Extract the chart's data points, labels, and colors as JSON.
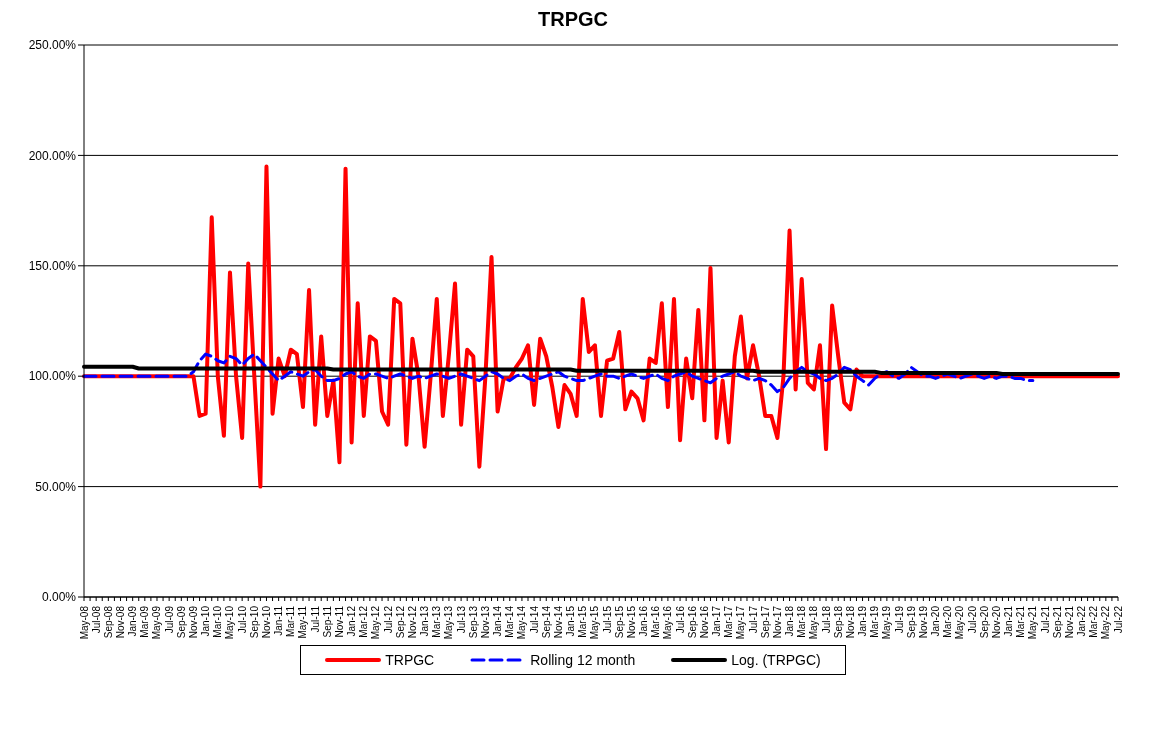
{
  "chart_data": {
    "type": "line",
    "title": "TRPGC",
    "categories": [
      "May-08",
      null,
      "Jul-08",
      null,
      "Sep-08",
      null,
      "Nov-08",
      null,
      "Jan-09",
      null,
      "Mar-09",
      null,
      "May-09",
      null,
      "Jul-09",
      null,
      "Sep-09",
      null,
      "Nov-09",
      null,
      "Jan-10",
      null,
      "Mar-10",
      null,
      "May-10",
      null,
      "Jul-10",
      null,
      "Sep-10",
      null,
      "Nov-10",
      null,
      "Jan-11",
      null,
      "Mar-11",
      null,
      "May-11",
      null,
      "Jul-11",
      null,
      "Sep-11",
      null,
      "Nov-11",
      null,
      "Jan-12",
      null,
      "Mar-12",
      null,
      "May-12",
      null,
      "Jul-12",
      null,
      "Sep-12",
      null,
      "Nov-12",
      null,
      "Jan-13",
      null,
      "Mar-13",
      null,
      "May-13",
      null,
      "Jul-13",
      null,
      "Sep-13",
      null,
      "Nov-13",
      null,
      "Jan-14",
      null,
      "Mar-14",
      null,
      "May-14",
      null,
      "Jul-14",
      null,
      "Sep-14",
      null,
      "Nov-14",
      null,
      "Jan-15",
      null,
      "Mar-15",
      null,
      "May-15",
      null,
      "Jul-15",
      null,
      "Sep-15",
      null,
      "Nov-15",
      null,
      "Jan-16",
      null,
      "Mar-16",
      null,
      "May-16",
      null,
      "Jul-16",
      null,
      "Sep-16",
      null,
      "Nov-16",
      null,
      "Jan-17",
      null,
      "Mar-17",
      null,
      "May-17",
      null,
      "Jul-17",
      null,
      "Sep-17",
      null,
      "Nov-17",
      null,
      "Jan-18",
      null,
      "Mar-18",
      null,
      "May-18",
      null,
      "Jul-18",
      null,
      "Sep-18",
      null,
      "Nov-18",
      null,
      "Jan-19",
      null,
      "Mar-19",
      null,
      "May-19",
      null,
      "Jul-19",
      null,
      "Sep-19",
      null,
      "Nov-19",
      null,
      "Jan-20",
      null,
      "Mar-20",
      null,
      "May-20",
      null,
      "Jul-20",
      null,
      "Sep-20",
      null,
      "Nov-20",
      null,
      "Jan-21",
      null,
      "Mar-21",
      null,
      "May-21",
      null,
      "Jul-21",
      null,
      "Sep-21",
      null,
      "Nov-21",
      null,
      "Jan-22",
      null,
      "Mar-22",
      null,
      "May-22",
      null,
      "Jul-22"
    ],
    "series": [
      {
        "name": "TRPGC",
        "color": "#ff0000",
        "line_style": "solid",
        "values": [
          100,
          100,
          100,
          100,
          100,
          100,
          100,
          100,
          100,
          100,
          100,
          100,
          100,
          100,
          100,
          100,
          100,
          100,
          100,
          82,
          83,
          172,
          100,
          73,
          147,
          100,
          72,
          151,
          100,
          50,
          195,
          83,
          108,
          100,
          112,
          110,
          86,
          139,
          78,
          118,
          82,
          98,
          61,
          194,
          70,
          133,
          82,
          118,
          116,
          84,
          78,
          135,
          133,
          69,
          117,
          100,
          68,
          100,
          135,
          82,
          110,
          142,
          78,
          112,
          109,
          59,
          100,
          154,
          84,
          99,
          99,
          104,
          108,
          114,
          87,
          117,
          109,
          95,
          77,
          96,
          92,
          82,
          135,
          111,
          114,
          82,
          107,
          108,
          120,
          85,
          93,
          90,
          80,
          108,
          106,
          133,
          86,
          135,
          71,
          108,
          90,
          130,
          80,
          149,
          72,
          98,
          70,
          109,
          127,
          99,
          114,
          100,
          82,
          82,
          72,
          100,
          166,
          94,
          144,
          97,
          94,
          114,
          67,
          132,
          109,
          88,
          85,
          103,
          100,
          100,
          100,
          100,
          100,
          100,
          100,
          100,
          100,
          100,
          100,
          100,
          100,
          100,
          100,
          100,
          100,
          100,
          100,
          100,
          100,
          100,
          100,
          100,
          100,
          100,
          100,
          100,
          100,
          100,
          100,
          100,
          100,
          100,
          100,
          100,
          100,
          100,
          100,
          100,
          100,
          100,
          100
        ]
      },
      {
        "name": "Rolling 12 month",
        "color": "#0000ff",
        "line_style": "dashed",
        "values": [
          100,
          100,
          100,
          100,
          100,
          100,
          100,
          100,
          100,
          100,
          100,
          100,
          100,
          100,
          100,
          100,
          100,
          100,
          102,
          107,
          110,
          109,
          107,
          106,
          109,
          108,
          105,
          108,
          110,
          107,
          104,
          101,
          98,
          100,
          102,
          101,
          100,
          102,
          103,
          100,
          98,
          98,
          99,
          101,
          102,
          100,
          99,
          101,
          101,
          100,
          99,
          100,
          101,
          100,
          99,
          100,
          99,
          100,
          101,
          100,
          99,
          100,
          101,
          100,
          99,
          98,
          100,
          102,
          101,
          99,
          98,
          100,
          101,
          99,
          98,
          99,
          100,
          101,
          102,
          100,
          99,
          98,
          98,
          99,
          100,
          101,
          100,
          100,
          99,
          100,
          101,
          100,
          99,
          100,
          101,
          99,
          98,
          100,
          101,
          102,
          100,
          99,
          98,
          97,
          99,
          100,
          101,
          102,
          100,
          99,
          98,
          99,
          98,
          96,
          93,
          95,
          99,
          102,
          104,
          102,
          101,
          99,
          98,
          99,
          101,
          104,
          103,
          100,
          98,
          96,
          99,
          101,
          102,
          100,
          99,
          101,
          104,
          102,
          100,
          100,
          99,
          100,
          101,
          100,
          99,
          100,
          101,
          100,
          99,
          100,
          99,
          100,
          100,
          99,
          99,
          98,
          98,
          null,
          null,
          null,
          null,
          null,
          null,
          null,
          null,
          null,
          null,
          null,
          null,
          null,
          null
        ]
      },
      {
        "name": "Log. (TRPGC)",
        "color": "#000000",
        "line_style": "solid",
        "values": [
          104.3,
          104.3,
          104.3,
          104.3,
          104.3,
          104.3,
          104.3,
          104.3,
          104.3,
          103.5,
          103.5,
          103.5,
          103.5,
          103.5,
          103.5,
          103.5,
          103.5,
          103.5,
          103.5,
          103.5,
          103.5,
          103.5,
          103.5,
          103.5,
          103.5,
          103.5,
          103.5,
          103.5,
          103.5,
          103.5,
          103.5,
          103.5,
          103.5,
          103.5,
          103.5,
          103.5,
          103.5,
          103.5,
          103.5,
          103.5,
          103.5,
          103,
          103,
          103,
          103,
          103,
          103,
          103,
          103,
          103,
          103,
          103,
          103,
          103,
          103,
          103,
          103,
          103,
          103,
          103,
          103,
          103,
          103,
          103,
          103,
          103,
          103,
          103,
          103,
          103,
          103,
          103,
          103,
          103,
          103,
          103,
          103,
          103,
          103,
          103,
          103,
          102.5,
          102.5,
          102.5,
          102.5,
          102.5,
          102.5,
          102.5,
          102.5,
          102.5,
          102.5,
          102.5,
          102.5,
          102.5,
          102.5,
          102.5,
          102.5,
          102.5,
          102.5,
          102.5,
          102.5,
          102.5,
          102.5,
          102.5,
          102.5,
          102.5,
          102.5,
          102.5,
          102.5,
          102.5,
          102.5,
          102,
          102,
          102,
          102,
          102,
          102,
          102,
          102,
          102,
          102,
          102,
          102,
          102,
          102,
          102,
          102,
          102,
          102,
          102,
          102,
          101.5,
          101.5,
          101.5,
          101.5,
          101.5,
          101.5,
          101.5,
          101.5,
          101.5,
          101.5,
          101.5,
          101.5,
          101.5,
          101.5,
          101.5,
          101.5,
          101.5,
          101.5,
          101.5,
          101.5,
          101,
          101,
          101,
          101,
          101,
          101,
          101,
          101,
          101,
          101,
          101,
          101,
          101,
          101,
          101,
          101,
          101,
          101,
          101,
          101
        ]
      }
    ],
    "ylim": [
      0,
      250
    ],
    "yticks": [
      {
        "value": 0,
        "label": "0.00%"
      },
      {
        "value": 50,
        "label": "50.00%"
      },
      {
        "value": 100,
        "label": "100.00%"
      },
      {
        "value": 150,
        "label": "150.00%"
      },
      {
        "value": 200,
        "label": "200.00%"
      },
      {
        "value": 250,
        "label": "250.00%"
      }
    ],
    "grid": "y",
    "legend": "bottom",
    "marker": "none"
  }
}
